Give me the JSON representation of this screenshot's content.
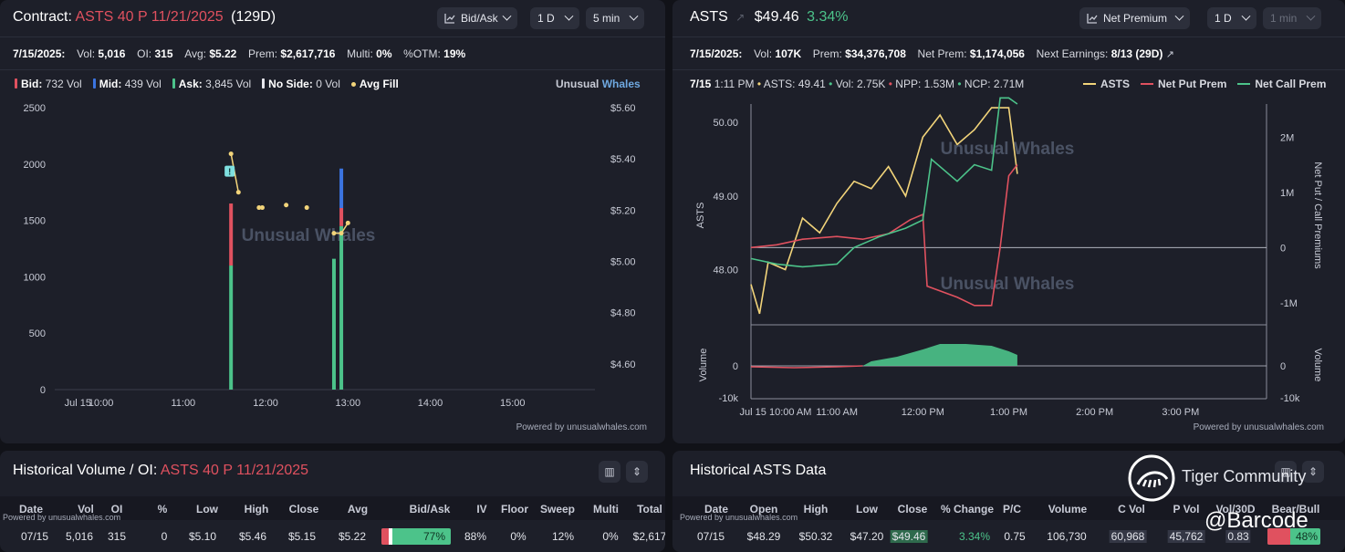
{
  "left_header": {
    "contract_prefix": "Contract:",
    "contract_name": "ASTS 40 P 11/21/2025",
    "days": "(129D)",
    "controls": [
      "Bid/Ask",
      "1 D",
      "5 min"
    ]
  },
  "left_stats": {
    "date": "7/15/2025:",
    "vol_label": "Vol:",
    "vol": "5,016",
    "oi_label": "OI:",
    "oi": "315",
    "avg_label": "Avg:",
    "avg": "$5.22",
    "prem_label": "Prem:",
    "prem": "$2,617,716",
    "multi_label": "Multi:",
    "multi": "0%",
    "otm_label": "%OTM:",
    "otm": "19%"
  },
  "left_legend": {
    "bid_label": "Bid:",
    "bid": "732 Vol",
    "mid_label": "Mid:",
    "mid": "439 Vol",
    "ask_label": "Ask:",
    "ask": "3,845 Vol",
    "noside_label": "No Side:",
    "noside": "0 Vol",
    "avgfill_label": "Avg Fill",
    "brand_a": "Unusual",
    "brand_b": "Whales"
  },
  "watermark": "Unusual Whales",
  "powered": "Powered by unusualwhales.com",
  "powered_small": "Powered by unusualwhales.com",
  "chart_data": [
    {
      "type": "bar",
      "title": "",
      "x_ticks": [
        "Jul 15",
        "10:00",
        "11:00",
        "12:00",
        "13:00",
        "14:00",
        "15:00"
      ],
      "y_left_ticks": [
        "0",
        "500",
        "1000",
        "1500",
        "2000",
        "2500"
      ],
      "y_right_ticks": [
        "$4.60",
        "$4.80",
        "$5.00",
        "$5.20",
        "$5.40",
        "$5.60"
      ],
      "ylim_left": [
        0,
        2500
      ],
      "ylim_right": [
        4.5,
        5.6
      ],
      "colors": {
        "bid": "#e0515f",
        "mid": "#3b74e0",
        "ask": "#4cc38a",
        "avg_fill": "#f2d47a"
      },
      "bars": [
        {
          "time": 11.58,
          "ask": 1100,
          "bid": 550,
          "mid": 0
        },
        {
          "time": 12.83,
          "ask": 1160,
          "bid": 0,
          "mid": 0
        },
        {
          "time": 12.92,
          "ask": 1450,
          "bid": 160,
          "mid": 350
        }
      ],
      "avg_fill": [
        [
          11.58,
          5.42
        ],
        [
          11.67,
          5.27
        ],
        [
          11.92,
          5.21
        ],
        [
          11.96,
          5.21
        ],
        [
          12.25,
          5.22
        ],
        [
          12.5,
          5.21
        ],
        [
          12.83,
          5.11
        ],
        [
          12.92,
          5.11
        ],
        [
          13.0,
          5.15
        ]
      ],
      "marker_label": "!"
    },
    {
      "type": "line",
      "title": "",
      "ylabel": "ASTS",
      "y2label": "Net Put / Call Premiums",
      "vol_ylabel": "Volume",
      "x_ticks": [
        "Jul 15 10:00 AM",
        "11:00 AM",
        "12:00 PM",
        "1:00 PM",
        "2:00 PM",
        "3:00 PM"
      ],
      "y_ticks": [
        "48.00",
        "49.00",
        "50.00"
      ],
      "y2_ticks": [
        "-1M",
        "0",
        "1M",
        "2M"
      ],
      "vol_ticks": [
        "-10k",
        "0"
      ],
      "vol2_ticks": [
        "-10k",
        "0"
      ],
      "ylim": [
        47.25,
        50.25
      ],
      "y2lim": [
        -1.4,
        2.6
      ],
      "series": [
        {
          "name": "ASTS",
          "color": "#f2d47a",
          "values": [
            [
              10.0,
              47.8
            ],
            [
              10.1,
              47.4
            ],
            [
              10.2,
              48.1
            ],
            [
              10.4,
              48.0
            ],
            [
              10.6,
              48.7
            ],
            [
              10.8,
              48.5
            ],
            [
              11.0,
              48.9
            ],
            [
              11.2,
              49.2
            ],
            [
              11.4,
              49.1
            ],
            [
              11.6,
              49.4
            ],
            [
              11.8,
              49.0
            ],
            [
              12.0,
              49.8
            ],
            [
              12.2,
              50.1
            ],
            [
              12.4,
              49.7
            ],
            [
              12.6,
              49.9
            ],
            [
              12.8,
              50.2
            ],
            [
              13.0,
              50.2
            ],
            [
              13.1,
              49.3
            ]
          ]
        },
        {
          "name": "Net Put Prem",
          "color": "#e0515f",
          "values": [
            [
              10.0,
              0.0
            ],
            [
              10.3,
              0.05
            ],
            [
              10.6,
              0.15
            ],
            [
              11.0,
              0.2
            ],
            [
              11.3,
              0.15
            ],
            [
              11.6,
              0.25
            ],
            [
              11.85,
              0.5
            ],
            [
              12.0,
              0.6
            ],
            [
              12.05,
              -0.7
            ],
            [
              12.4,
              -0.9
            ],
            [
              12.6,
              -1.05
            ],
            [
              12.8,
              -1.05
            ],
            [
              12.9,
              0.0
            ],
            [
              13.0,
              1.3
            ],
            [
              13.1,
              1.5
            ]
          ]
        },
        {
          "name": "Net Call Prem",
          "color": "#4cc38a",
          "values": [
            [
              10.0,
              -0.2
            ],
            [
              10.3,
              -0.3
            ],
            [
              10.6,
              -0.35
            ],
            [
              11.0,
              -0.3
            ],
            [
              11.2,
              0.0
            ],
            [
              11.5,
              0.2
            ],
            [
              11.8,
              0.35
            ],
            [
              12.0,
              0.5
            ],
            [
              12.1,
              1.6
            ],
            [
              12.4,
              1.2
            ],
            [
              12.6,
              1.5
            ],
            [
              12.8,
              1.4
            ],
            [
              12.9,
              2.71
            ],
            [
              13.0,
              2.71
            ],
            [
              13.1,
              2.6
            ]
          ]
        }
      ]
    }
  ],
  "right_header": {
    "ticker": "ASTS",
    "price": "$49.46",
    "change": "3.34%",
    "controls": [
      "Net Premium",
      "1 D",
      "1 min"
    ]
  },
  "right_stats": {
    "date": "7/15/2025:",
    "vol_label": "Vol:",
    "vol": "107K",
    "prem_label": "Prem:",
    "prem": "$34,376,708",
    "netprem_label": "Net Prem:",
    "netprem": "$1,174,056",
    "earn_label": "Next Earnings:",
    "earn": "8/13 (29D)"
  },
  "right_legend": {
    "ts": "7/15",
    "time": "1:11 PM",
    "asts_label": "ASTS:",
    "asts": "49.41",
    "vol_label": "Vol:",
    "vol": "2.75K",
    "npp_label": "NPP:",
    "npp": "1.53M",
    "ncp_label": "NCP:",
    "ncp": "2.71M",
    "s1": "ASTS",
    "s2": "Net Put Prem",
    "s3": "Net Call Prem"
  },
  "hist_left": {
    "title_prefix": "Historical Volume / OI:",
    "title_contract": "ASTS 40 P 11/21/2025",
    "headers": [
      "Date",
      "Vol",
      "OI",
      "%",
      "Low",
      "High",
      "Close",
      "Avg",
      "Bid/Ask",
      "IV",
      "Floor",
      "Sweep",
      "Multi",
      "Total"
    ],
    "row": [
      "07/15",
      "5,016",
      "315",
      "0",
      "$5.10",
      "$5.46",
      "$5.15",
      "$5.22",
      "77%",
      "88%",
      "0%",
      "12%",
      "0%",
      "$2,617"
    ],
    "bidask_pct": 0.77
  },
  "hist_right": {
    "title": "Historical ASTS Data",
    "headers": [
      "Date",
      "Open",
      "High",
      "Low",
      "Close",
      "% Change",
      "P/C",
      "Volume",
      "C Vol",
      "P Vol",
      "Vol/30D",
      "Bear/Bull"
    ],
    "row": [
      "07/15",
      "$48.29",
      "$50.32",
      "$47.20",
      "$49.46",
      "3.34%",
      "0.75",
      "106,730",
      "60,968",
      "45,762",
      "0.83",
      "48%"
    ],
    "bearbull_pct": 0.48
  },
  "overlay": {
    "community": "Tiger Community",
    "handle": "@Barcode"
  }
}
